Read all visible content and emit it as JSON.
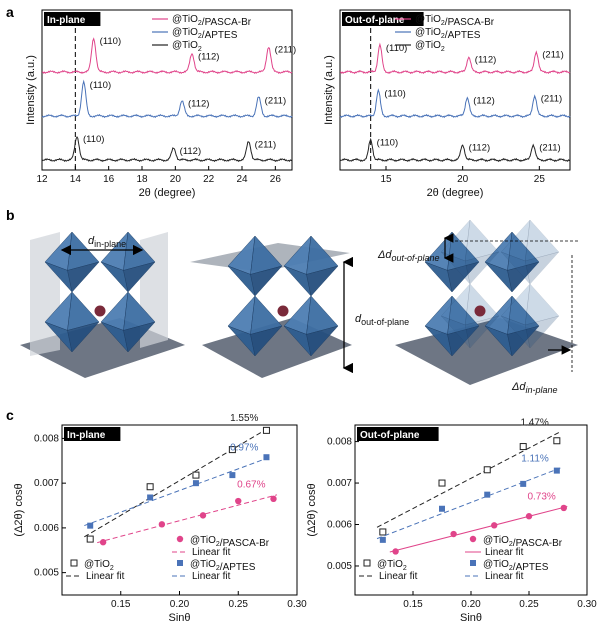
{
  "panel_letters": {
    "a": "a",
    "b": "b",
    "c": "c"
  },
  "colors": {
    "pasca": "#e0448a",
    "aptes": "#4a73b8",
    "tio2": "#222222"
  },
  "panel_b": {
    "d_in": "d",
    "d_in_sub": "in-plane",
    "d_out": "d",
    "d_out_sub": "out-of-plane",
    "dd_out": "Δd",
    "dd_out_sub": "out-of-plane",
    "dd_in": "Δd",
    "dd_in_sub": "in-plane"
  },
  "chart_data": [
    {
      "type": "line",
      "tag": "In-plane",
      "xlabel": "2θ (degree)",
      "ylabel": "Intensity (a.u.)",
      "xlim": [
        12,
        27
      ],
      "xticks": [
        12,
        14,
        16,
        18,
        20,
        22,
        24,
        26
      ],
      "dashed_x": 14.0,
      "series": [
        {
          "name": "@TiO₂/PASCA-Br",
          "color": "#e0448a",
          "offset": 2,
          "peaks": [
            {
              "x": 15.1,
              "h": 1.0,
              "label": "(110)"
            },
            {
              "x": 21.0,
              "h": 0.55,
              "label": "(112)"
            },
            {
              "x": 25.6,
              "h": 0.75,
              "label": "(211)"
            }
          ]
        },
        {
          "name": "@TiO₂/APTES",
          "color": "#4a73b8",
          "offset": 1,
          "peaks": [
            {
              "x": 14.5,
              "h": 1.0,
              "label": "(110)"
            },
            {
              "x": 20.4,
              "h": 0.45,
              "label": "(112)"
            },
            {
              "x": 25.0,
              "h": 0.55,
              "label": "(211)"
            }
          ]
        },
        {
          "name": "@TiO₂",
          "color": "#222222",
          "offset": 0,
          "peaks": [
            {
              "x": 14.1,
              "h": 0.7,
              "label": "(110)"
            },
            {
              "x": 19.9,
              "h": 0.35,
              "label": "(112)"
            },
            {
              "x": 24.4,
              "h": 0.55,
              "label": "(211)"
            }
          ]
        }
      ]
    },
    {
      "type": "line",
      "tag": "Out-of-plane",
      "xlabel": "2θ (degree)",
      "ylabel": "Intensity (a.u.)",
      "xlim": [
        12,
        27
      ],
      "xticks": [
        15,
        20,
        25
      ],
      "dashed_x": 14.0,
      "series": [
        {
          "name": "@TiO₂/PASCA-Br",
          "color": "#e0448a",
          "offset": 2,
          "peaks": [
            {
              "x": 14.6,
              "h": 0.8,
              "label": "(110)"
            },
            {
              "x": 20.4,
              "h": 0.45,
              "label": "(112)"
            },
            {
              "x": 24.8,
              "h": 0.6,
              "label": "(211)"
            }
          ]
        },
        {
          "name": "@TiO₂/APTES",
          "color": "#4a73b8",
          "offset": 1,
          "peaks": [
            {
              "x": 14.5,
              "h": 0.75,
              "label": "(110)"
            },
            {
              "x": 20.3,
              "h": 0.55,
              "label": "(112)"
            },
            {
              "x": 24.7,
              "h": 0.6,
              "label": "(211)"
            }
          ]
        },
        {
          "name": "@TiO₂",
          "color": "#222222",
          "offset": 0,
          "peaks": [
            {
              "x": 14.0,
              "h": 0.6,
              "label": "(110)"
            },
            {
              "x": 20.0,
              "h": 0.45,
              "label": "(112)"
            },
            {
              "x": 24.6,
              "h": 0.45,
              "label": "(211)"
            }
          ]
        }
      ]
    },
    {
      "type": "scatter",
      "tag": "In-plane",
      "xlabel": "Sinθ",
      "ylabel": "(Δ2θ) cosθ",
      "xlim": [
        0.1,
        0.3
      ],
      "ylim": [
        0.0045,
        0.0083
      ],
      "xticks": [
        0.15,
        0.2,
        0.25,
        0.3
      ],
      "yticks": [
        0.005,
        0.006,
        0.007,
        0.008
      ],
      "series": [
        {
          "name": "@TiO₂",
          "marker": "open-square",
          "color": "#222222",
          "strain": "1.55%",
          "x": [
            0.124,
            0.175,
            0.214,
            0.245,
            0.274
          ],
          "y": [
            0.00575,
            0.00692,
            0.00718,
            0.00775,
            0.00818
          ]
        },
        {
          "name": "@TiO₂/APTES",
          "marker": "filled-square",
          "color": "#4a73b8",
          "strain": "0.97%",
          "x": [
            0.124,
            0.175,
            0.214,
            0.245,
            0.274
          ],
          "y": [
            0.00605,
            0.00668,
            0.007,
            0.00718,
            0.00758
          ]
        },
        {
          "name": "@TiO₂/PASCA-Br",
          "marker": "circle",
          "color": "#e0448a",
          "strain": "0.67%",
          "x": [
            0.135,
            0.185,
            0.22,
            0.25,
            0.28
          ],
          "y": [
            0.00568,
            0.00608,
            0.00628,
            0.0066,
            0.00665
          ]
        }
      ],
      "fit_label": "Linear fit"
    },
    {
      "type": "scatter",
      "tag": "Out-of-plane",
      "xlabel": "Sinθ",
      "ylabel": "(Δ2θ) cosθ",
      "xlim": [
        0.1,
        0.3
      ],
      "ylim": [
        0.0043,
        0.0084
      ],
      "xticks": [
        0.15,
        0.2,
        0.25,
        0.3
      ],
      "yticks": [
        0.005,
        0.006,
        0.007,
        0.008
      ],
      "series": [
        {
          "name": "@TiO₂",
          "marker": "open-square",
          "color": "#222222",
          "strain": "1.47%",
          "x": [
            0.124,
            0.175,
            0.214,
            0.245,
            0.274
          ],
          "y": [
            0.00582,
            0.007,
            0.00732,
            0.00788,
            0.00802
          ]
        },
        {
          "name": "@TiO₂/APTES",
          "marker": "filled-square",
          "color": "#4a73b8",
          "strain": "1.11%",
          "x": [
            0.124,
            0.175,
            0.214,
            0.245,
            0.274
          ],
          "y": [
            0.00563,
            0.00638,
            0.00672,
            0.00698,
            0.0073
          ]
        },
        {
          "name": "@TiO₂/PASCA-Br",
          "marker": "circle",
          "color": "#e0448a",
          "strain": "0.73%",
          "x": [
            0.135,
            0.185,
            0.22,
            0.25,
            0.28
          ],
          "y": [
            0.00535,
            0.00577,
            0.00598,
            0.0062,
            0.0064
          ]
        }
      ],
      "fit_label": "Linear fit"
    }
  ]
}
